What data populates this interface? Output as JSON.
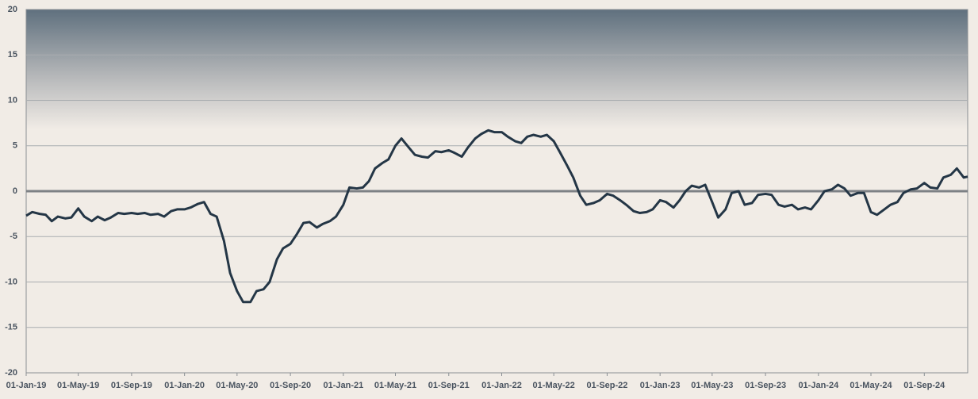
{
  "chart_data": {
    "type": "line",
    "x": [
      "2019-01-01",
      "2019-01-15",
      "2019-02-01",
      "2019-02-15",
      "2019-03-01",
      "2019-03-15",
      "2019-04-01",
      "2019-04-15",
      "2019-05-01",
      "2019-05-15",
      "2019-06-01",
      "2019-06-15",
      "2019-07-01",
      "2019-07-15",
      "2019-08-01",
      "2019-08-15",
      "2019-09-01",
      "2019-09-15",
      "2019-10-01",
      "2019-10-15",
      "2019-11-01",
      "2019-11-15",
      "2019-12-01",
      "2019-12-15",
      "2020-01-01",
      "2020-01-15",
      "2020-02-01",
      "2020-02-15",
      "2020-03-01",
      "2020-03-15",
      "2020-04-01",
      "2020-04-15",
      "2020-05-01",
      "2020-05-15",
      "2020-06-01",
      "2020-06-15",
      "2020-07-01",
      "2020-07-15",
      "2020-08-01",
      "2020-08-15",
      "2020-09-01",
      "2020-09-15",
      "2020-10-01",
      "2020-10-15",
      "2020-11-01",
      "2020-11-15",
      "2020-12-01",
      "2020-12-15",
      "2021-01-01",
      "2021-01-15",
      "2021-02-01",
      "2021-02-15",
      "2021-03-01",
      "2021-03-15",
      "2021-04-01",
      "2021-04-15",
      "2021-05-01",
      "2021-05-15",
      "2021-06-01",
      "2021-06-15",
      "2021-07-01",
      "2021-07-15",
      "2021-08-01",
      "2021-08-15",
      "2021-09-01",
      "2021-09-15",
      "2021-10-01",
      "2021-10-15",
      "2021-11-01",
      "2021-11-15",
      "2021-12-01",
      "2021-12-15",
      "2022-01-01",
      "2022-01-15",
      "2022-02-01",
      "2022-02-15",
      "2022-03-01",
      "2022-03-15",
      "2022-04-01",
      "2022-04-15",
      "2022-05-01",
      "2022-05-15",
      "2022-06-01",
      "2022-06-15",
      "2022-07-01",
      "2022-07-15",
      "2022-08-01",
      "2022-08-15",
      "2022-09-01",
      "2022-09-15",
      "2022-10-01",
      "2022-10-15",
      "2022-11-01",
      "2022-11-15",
      "2022-12-01",
      "2022-12-15",
      "2023-01-01",
      "2023-01-15",
      "2023-02-01",
      "2023-02-15",
      "2023-03-01",
      "2023-03-15",
      "2023-04-01",
      "2023-04-15",
      "2023-05-01",
      "2023-05-15",
      "2023-06-01",
      "2023-06-15",
      "2023-07-01",
      "2023-07-15",
      "2023-08-01",
      "2023-08-15",
      "2023-09-01",
      "2023-09-15",
      "2023-10-01",
      "2023-10-15",
      "2023-11-01",
      "2023-11-15",
      "2023-12-01",
      "2023-12-15",
      "2024-01-01",
      "2024-01-15",
      "2024-02-01",
      "2024-02-15",
      "2024-03-01",
      "2024-03-15",
      "2024-04-01",
      "2024-04-15",
      "2024-05-01",
      "2024-05-15",
      "2024-06-01",
      "2024-06-15",
      "2024-07-01",
      "2024-07-15",
      "2024-08-01",
      "2024-08-15",
      "2024-09-01",
      "2024-09-15",
      "2024-10-01",
      "2024-10-15",
      "2024-11-01",
      "2024-11-15",
      "2024-12-01",
      "2024-12-10"
    ],
    "series": [
      {
        "color": "#243646",
        "values": [
          -2.7,
          -2.3,
          -2.5,
          -2.6,
          -3.3,
          -2.8,
          -3.0,
          -2.9,
          -1.9,
          -2.8,
          -3.3,
          -2.8,
          -3.2,
          -2.9,
          -2.4,
          -2.5,
          -2.4,
          -2.5,
          -2.4,
          -2.6,
          -2.5,
          -2.8,
          -2.2,
          -2.0,
          -2.0,
          -1.8,
          -1.4,
          -1.2,
          -2.5,
          -2.8,
          -5.5,
          -9.0,
          -11.0,
          -12.2,
          -12.2,
          -11.0,
          -10.8,
          -10.0,
          -7.5,
          -6.3,
          -5.8,
          -4.8,
          -3.5,
          -3.4,
          -4.0,
          -3.6,
          -3.3,
          -2.8,
          -1.5,
          0.4,
          0.3,
          0.4,
          1.1,
          2.5,
          3.1,
          3.5,
          5.0,
          5.8,
          4.8,
          4.0,
          3.8,
          3.7,
          4.4,
          4.3,
          4.5,
          4.2,
          3.8,
          4.8,
          5.8,
          6.3,
          6.7,
          6.5,
          6.5,
          6.0,
          5.5,
          5.3,
          6.0,
          6.2,
          6.0,
          6.2,
          5.5,
          4.3,
          2.8,
          1.5,
          -0.5,
          -1.5,
          -1.3,
          -1.0,
          -0.3,
          -0.5,
          -1.0,
          -1.5,
          -2.2,
          -2.4,
          -2.3,
          -2.0,
          -1.0,
          -1.2,
          -1.8,
          -1.0,
          0.0,
          0.6,
          0.4,
          0.7,
          -1.2,
          -2.9,
          -2.0,
          -0.2,
          0.0,
          -1.5,
          -1.3,
          -0.4,
          -0.3,
          -0.4,
          -1.5,
          -1.7,
          -1.5,
          -2.0,
          -1.8,
          -2.0,
          -1.0,
          0.0,
          0.2,
          0.7,
          0.3,
          -0.5,
          -0.2,
          -0.2,
          -2.3,
          -2.6,
          -2.0,
          -1.5,
          -1.2,
          -0.2,
          0.2,
          0.3,
          0.9,
          0.4,
          0.3,
          1.5,
          1.8,
          2.5,
          1.5,
          1.6
        ]
      }
    ],
    "xlim": [
      "2019-01-01",
      "2024-12-10"
    ],
    "xticks": [
      {
        "value": "2019-01-01",
        "label": "01-Jan-19"
      },
      {
        "value": "2019-05-01",
        "label": "01-May-19"
      },
      {
        "value": "2019-09-01",
        "label": "01-Sep-19"
      },
      {
        "value": "2020-01-01",
        "label": "01-Jan-20"
      },
      {
        "value": "2020-05-01",
        "label": "01-May-20"
      },
      {
        "value": "2020-09-01",
        "label": "01-Sep-20"
      },
      {
        "value": "2021-01-01",
        "label": "01-Jan-21"
      },
      {
        "value": "2021-05-01",
        "label": "01-May-21"
      },
      {
        "value": "2021-09-01",
        "label": "01-Sep-21"
      },
      {
        "value": "2022-01-01",
        "label": "01-Jan-22"
      },
      {
        "value": "2022-05-01",
        "label": "01-May-22"
      },
      {
        "value": "2022-09-01",
        "label": "01-Sep-22"
      },
      {
        "value": "2023-01-01",
        "label": "01-Jan-23"
      },
      {
        "value": "2023-05-01",
        "label": "01-May-23"
      },
      {
        "value": "2023-09-01",
        "label": "01-Sep-23"
      },
      {
        "value": "2024-01-01",
        "label": "01-Jan-24"
      },
      {
        "value": "2024-05-01",
        "label": "01-May-24"
      },
      {
        "value": "2024-09-01",
        "label": "01-Sep-24"
      }
    ],
    "ylim": [
      -20,
      20
    ],
    "yticks": [
      -20,
      -15,
      -10,
      -5,
      0,
      5,
      10,
      15,
      20
    ],
    "grid": true
  }
}
